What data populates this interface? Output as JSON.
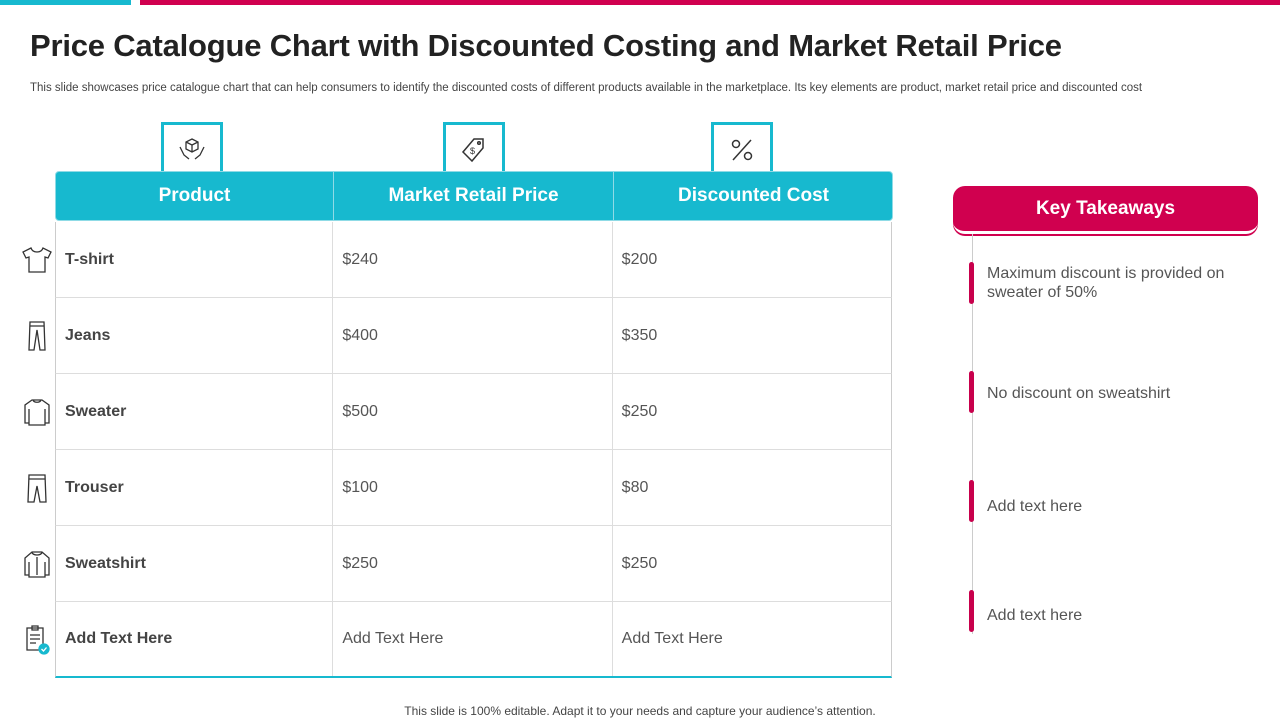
{
  "title": "Price Catalogue Chart with Discounted Costing and Market Retail Price",
  "subtitle": "This slide showcases price catalogue chart that can help consumers to identify the discounted costs of different products available in the marketplace. Its key elements are product, market retail price and discounted cost",
  "table": {
    "headers": [
      "Product",
      "Market Retail Price",
      "Discounted Cost"
    ],
    "rows": [
      {
        "product": "T-shirt",
        "retail": "$240",
        "discounted": "$200",
        "icon": "tshirt-icon"
      },
      {
        "product": "Jeans",
        "retail": "$400",
        "discounted": "$350",
        "icon": "jeans-icon"
      },
      {
        "product": "Sweater",
        "retail": "$500",
        "discounted": "$250",
        "icon": "sweater-icon"
      },
      {
        "product": "Trouser",
        "retail": "$100",
        "discounted": "$80",
        "icon": "trouser-icon"
      },
      {
        "product": "Sweatshirt",
        "retail": "$250",
        "discounted": "$250",
        "icon": "sweatshirt-icon"
      },
      {
        "product": "Add Text Here",
        "retail": "Add Text Here",
        "discounted": "Add Text Here",
        "icon": "clipboard-check-icon"
      }
    ]
  },
  "takeaways": {
    "title": "Key Takeaways",
    "items": [
      "Maximum discount is provided on sweater of 50%",
      "No discount on sweatshirt",
      "Add text here",
      "Add text here"
    ]
  },
  "footer": "This slide is 100% editable. Adapt it to your needs and capture your audience’s attention.",
  "colors": {
    "accent": "#17b9cf",
    "brand": "#d0004f"
  }
}
